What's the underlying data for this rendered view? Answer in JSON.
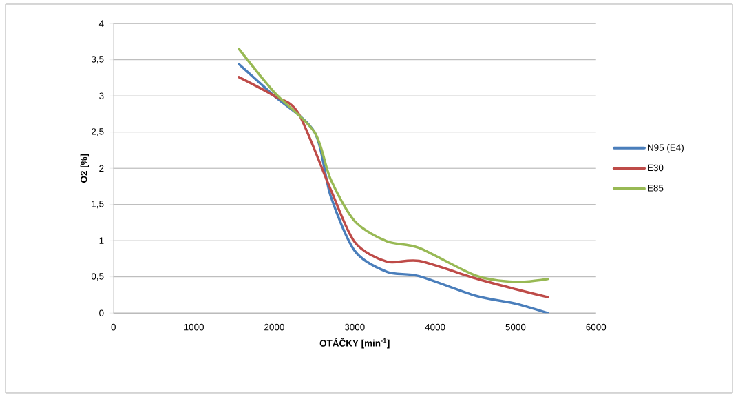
{
  "chart_data": {
    "type": "line",
    "xlabel": "OTÁČKY [min$^{-1}$]",
    "ylabel": "O2 [%]",
    "xlim": [
      0,
      6000
    ],
    "xticks": [
      0,
      1000,
      2000,
      3000,
      4000,
      5000,
      6000
    ],
    "ylim": [
      0,
      4
    ],
    "yticks": [
      {
        "value": 0,
        "label": "0"
      },
      {
        "value": 0.5,
        "label": "0,5"
      },
      {
        "value": 1,
        "label": "1"
      },
      {
        "value": 1.5,
        "label": "1,5"
      },
      {
        "value": 2,
        "label": "2"
      },
      {
        "value": 2.5,
        "label": "2,5"
      },
      {
        "value": 3,
        "label": "3"
      },
      {
        "value": 3.5,
        "label": "3,5"
      },
      {
        "value": 4,
        "label": "4"
      }
    ],
    "grid": "y",
    "legend": "right",
    "marker": "none",
    "line_style": "solid",
    "series": [
      {
        "name": "N95 (E4)",
        "color": "#4a7ebb",
        "x": [
          1560,
          2000,
          2500,
          2700,
          3000,
          3400,
          3800,
          4500,
          5000,
          5400
        ],
        "values": [
          3.44,
          3.0,
          2.5,
          1.62,
          0.86,
          0.57,
          0.51,
          0.24,
          0.13,
          0.0
        ]
      },
      {
        "name": "E30",
        "color": "#be4b48",
        "x": [
          1560,
          2000,
          2300,
          2700,
          3000,
          3400,
          3800,
          4500,
          5000,
          5400
        ],
        "values": [
          3.26,
          3.0,
          2.76,
          1.71,
          0.98,
          0.71,
          0.72,
          0.48,
          0.33,
          0.22
        ]
      },
      {
        "name": "E85",
        "color": "#98b954",
        "x": [
          1560,
          2000,
          2500,
          2700,
          3000,
          3400,
          3800,
          4500,
          5000,
          5400
        ],
        "values": [
          3.65,
          3.05,
          2.5,
          1.85,
          1.27,
          0.99,
          0.9,
          0.52,
          0.43,
          0.47
        ]
      }
    ]
  }
}
